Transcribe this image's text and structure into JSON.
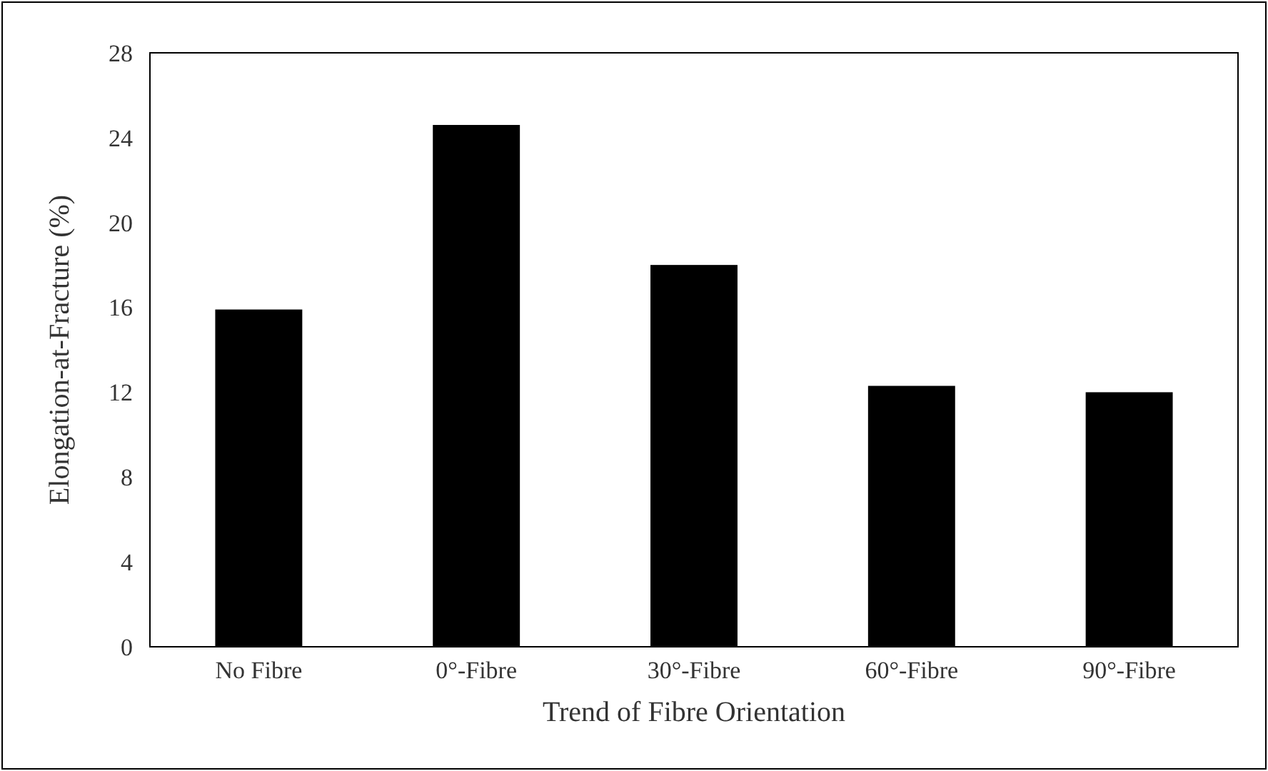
{
  "chart_data": {
    "type": "bar",
    "xlabel": "Trend of Fibre Orientation",
    "ylabel": "Elongation-at-Fracture (%)",
    "categories": [
      "No Fibre",
      "0°-Fibre",
      "30°-Fibre",
      "60°-Fibre",
      "90°-Fibre"
    ],
    "values": [
      15.9,
      24.6,
      18.0,
      12.3,
      12.0
    ],
    "color": "#000000",
    "ylim": [
      0,
      28
    ],
    "yticks": [
      0,
      4,
      8,
      12,
      16,
      20,
      24,
      28
    ],
    "grid": false
  }
}
